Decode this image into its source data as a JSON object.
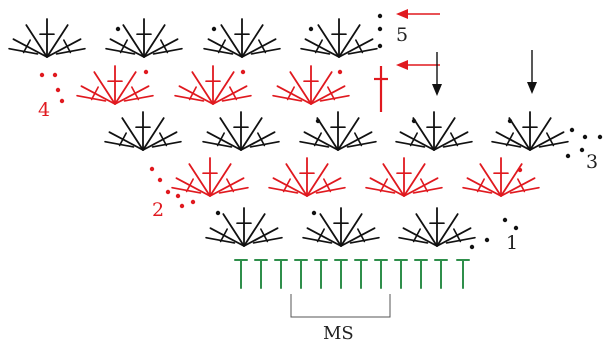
{
  "labels": {
    "row1": "1",
    "row2": "2",
    "row3": "3",
    "row4": "4",
    "row5": "5",
    "pattern_repeat": "MS"
  },
  "colors": {
    "black_rows": "#111111",
    "red_rows": "#e0191f",
    "foundation": "#2f8f4b",
    "bracket": "#555555"
  },
  "symbols": {
    "shell": "fan-shell-icon",
    "chain": "chain-dot-icon",
    "foundation_stitch": "treble-stitch-icon",
    "arrow": "arrow-icon"
  },
  "structure": {
    "foundation_stitch_count": 12,
    "rows": [
      {
        "row": 1,
        "color": "black",
        "shells": 3
      },
      {
        "row": 2,
        "color": "red",
        "shells": 4
      },
      {
        "row": 3,
        "color": "black",
        "shells": 5
      },
      {
        "row": 4,
        "color": "red",
        "shells": 3
      },
      {
        "row": 5,
        "color": "black",
        "shells": 4
      }
    ]
  }
}
